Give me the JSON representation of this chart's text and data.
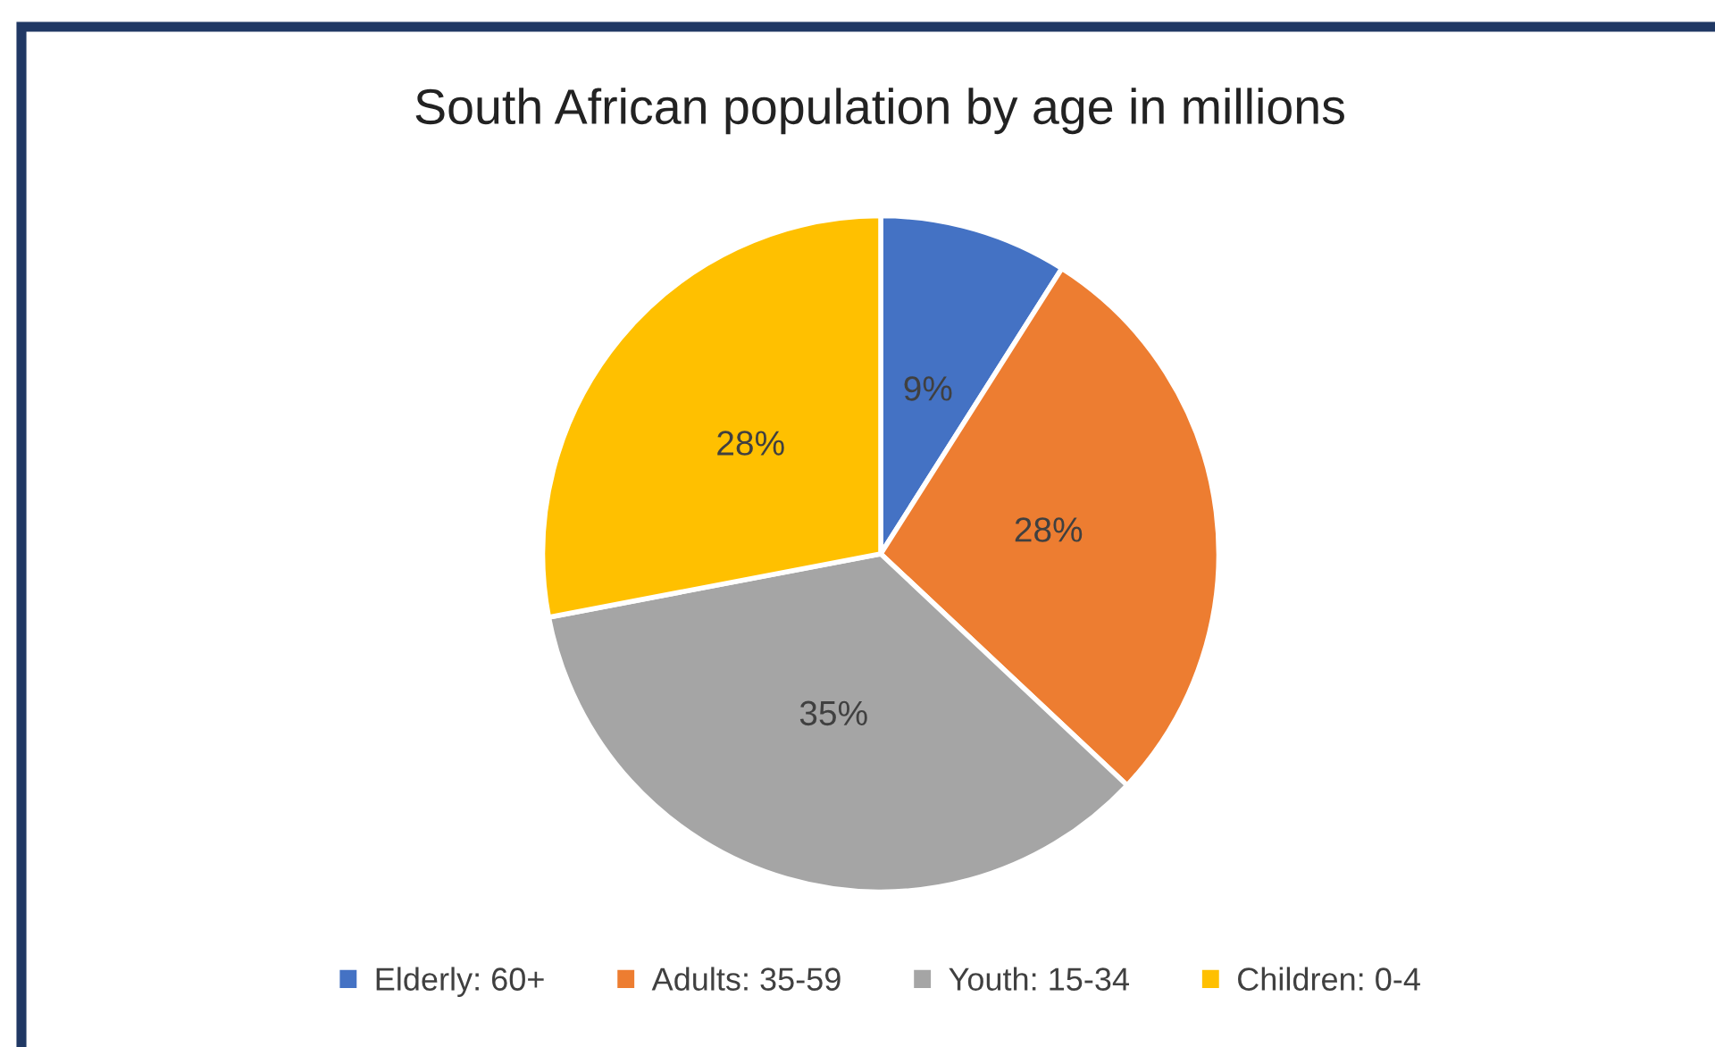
{
  "chart_data": {
    "type": "pie",
    "title": "South African population by age in millions",
    "categories": [
      "Elderly: 60+",
      "Adults: 35-59",
      "Youth: 15-34",
      "Children: 0-4"
    ],
    "values": [
      9,
      28,
      35,
      28
    ],
    "colors": [
      "#4472c4",
      "#ed7d31",
      "#a5a5a5",
      "#ffc000"
    ],
    "value_labels": [
      "9%",
      "28%",
      "35%",
      "28%"
    ],
    "legend": "bottom"
  }
}
